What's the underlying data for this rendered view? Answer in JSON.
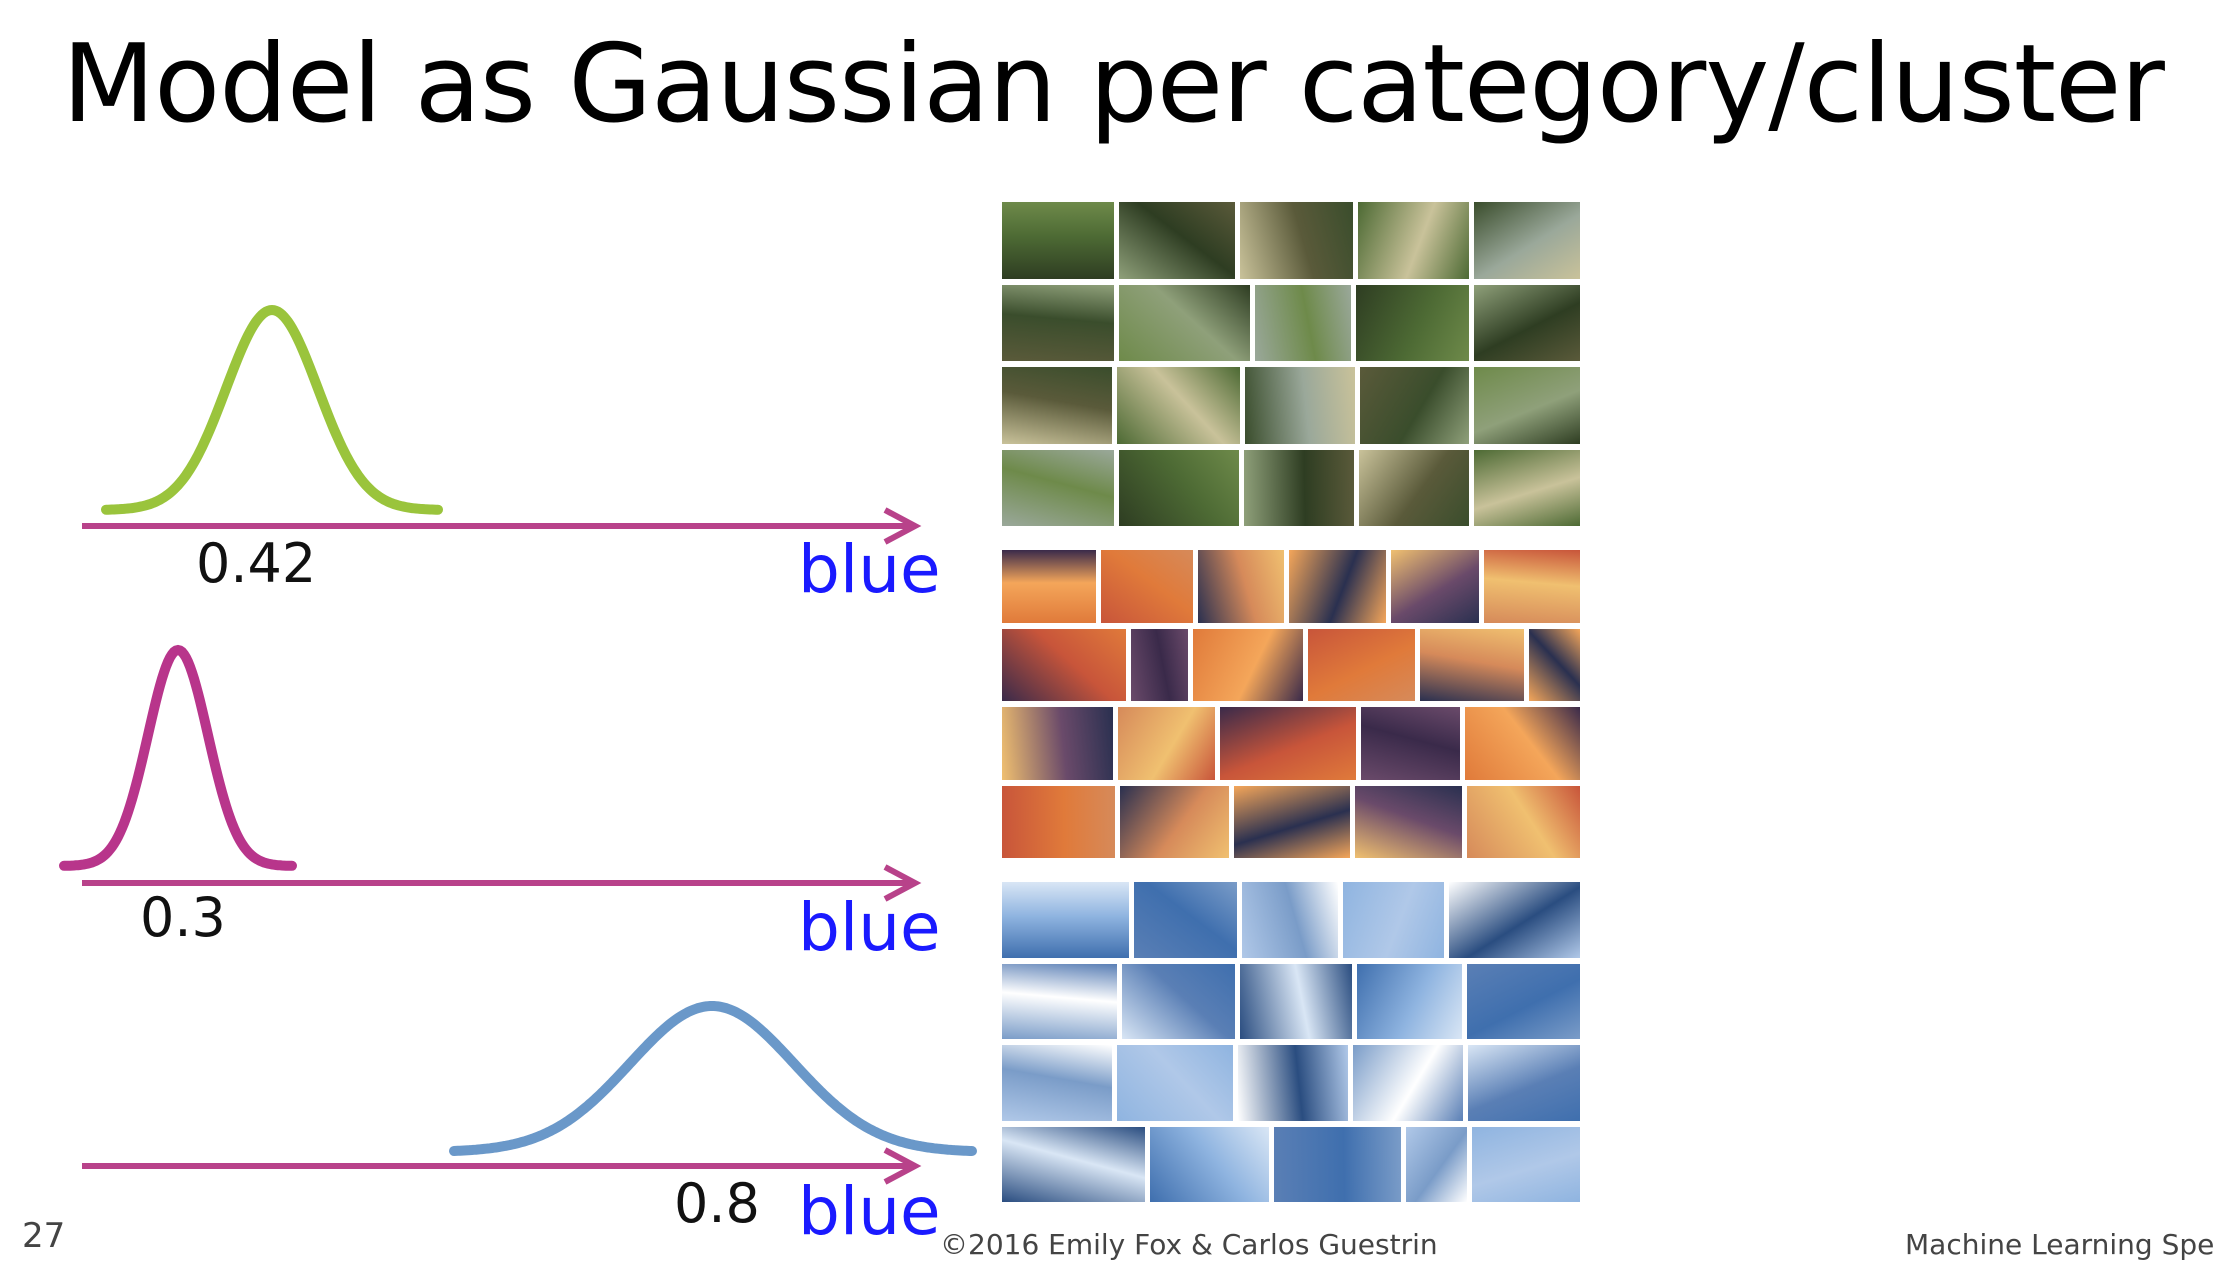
{
  "slide": {
    "title": "Model as Gaussian per category/cluster",
    "page_number": "27",
    "footer_left": "©2016 Emily Fox & Carlos Guestrin",
    "footer_right": "Machine Learning Speciali"
  },
  "colors": {
    "axis": "#b8428a",
    "axis_label": "#1a1aff",
    "forest_curve": "#9ac43c",
    "sunset_curve": "#b8358b",
    "cloud_curve": "#6a98c9"
  },
  "rows": [
    {
      "name": "forest",
      "mean_label": "0.42",
      "axis_label": "blue",
      "color_key": "forest_curve"
    },
    {
      "name": "sunset",
      "mean_label": "0.3",
      "axis_label": "blue",
      "color_key": "sunset_curve"
    },
    {
      "name": "cloud",
      "mean_label": "0.8",
      "axis_label": "blue",
      "color_key": "cloud_curve"
    }
  ],
  "image_groups": [
    {
      "name": "forest-images",
      "palette": [
        "#2e3d22",
        "#4d6a34",
        "#6e8a4a",
        "#8fa07a",
        "#3a4d2c",
        "#9aa89a",
        "#c9c29a",
        "#5a5a3a"
      ]
    },
    {
      "name": "sunset-images",
      "palette": [
        "#e07a3a",
        "#f4a65a",
        "#3a2a4a",
        "#c8553a",
        "#f0c070",
        "#6a4a6a",
        "#2a3050",
        "#d68a5a"
      ]
    },
    {
      "name": "cloud-images",
      "palette": [
        "#3f6fae",
        "#8fb4e0",
        "#d9e6f5",
        "#5a7fb5",
        "#ffffff",
        "#2a4d80",
        "#b0c8e8",
        "#7a9cc8"
      ]
    }
  ]
}
